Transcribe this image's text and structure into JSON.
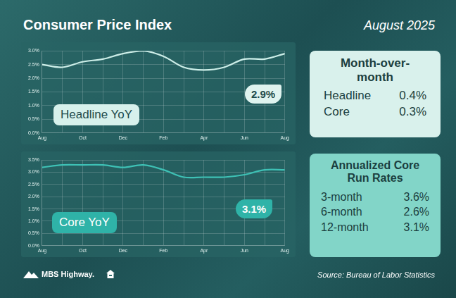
{
  "title": "Consumer Price Index",
  "date": "August 2025",
  "chart_data": [
    {
      "type": "line",
      "title": "Headline YoY",
      "categories": [
        "Aug",
        null,
        "Oct",
        null,
        "Dec",
        null,
        "Feb",
        null,
        "Apr",
        null,
        "Jun",
        null,
        "Aug"
      ],
      "values": [
        2.5,
        2.4,
        2.6,
        2.7,
        2.9,
        3.0,
        2.8,
        2.4,
        2.3,
        2.4,
        2.7,
        2.7,
        2.9
      ],
      "color": "#cdeee8",
      "ylim": [
        0,
        3
      ],
      "yticks": [
        {
          "value": 0,
          "label": "0.0%"
        },
        {
          "value": 0.5,
          "label": "0.5%"
        },
        {
          "value": 1,
          "label": "1.0%"
        },
        {
          "value": 1.5,
          "label": "1.5%"
        },
        {
          "value": 2,
          "label": "2.0%"
        },
        {
          "value": 2.5,
          "label": "2.5%"
        },
        {
          "value": 3,
          "label": "3.0%"
        }
      ],
      "grid": true,
      "annotation": "2.9%"
    },
    {
      "type": "line",
      "title": "Core YoY",
      "categories": [
        "Aug",
        null,
        "Oct",
        null,
        "Dec",
        null,
        "Feb",
        null,
        "Apr",
        null,
        "Jun",
        null,
        "Aug"
      ],
      "values": [
        3.2,
        3.3,
        3.3,
        3.3,
        3.2,
        3.3,
        3.1,
        2.8,
        2.8,
        2.8,
        2.9,
        3.1,
        3.1
      ],
      "color": "#3ec1b5",
      "ylim": [
        0,
        3.5
      ],
      "yticks": [
        {
          "value": 0,
          "label": "0.0%"
        },
        {
          "value": 0.5,
          "label": "0.5%"
        },
        {
          "value": 1,
          "label": "1.0%"
        },
        {
          "value": 1.5,
          "label": "1.5%"
        },
        {
          "value": 2,
          "label": "2.0%"
        },
        {
          "value": 2.5,
          "label": "2.5%"
        },
        {
          "value": 3,
          "label": "3.0%"
        },
        {
          "value": 3.5,
          "label": "3.5%"
        }
      ],
      "grid": true,
      "annotation": "3.1%"
    }
  ],
  "month_over_month": {
    "title": "Month-over-month",
    "rows": [
      {
        "label": "Headline",
        "value": "0.4%"
      },
      {
        "label": "Core",
        "value": "0.3%"
      }
    ]
  },
  "run_rates": {
    "title": "Annualized Core Run Rates",
    "rows": [
      {
        "label": "3-month",
        "value": "3.6%"
      },
      {
        "label": "6-month",
        "value": "2.6%"
      },
      {
        "label": "12-month",
        "value": "3.1%"
      }
    ]
  },
  "logo": "MBS Highway.",
  "source": "Source: Bureau of Labor Statistics"
}
